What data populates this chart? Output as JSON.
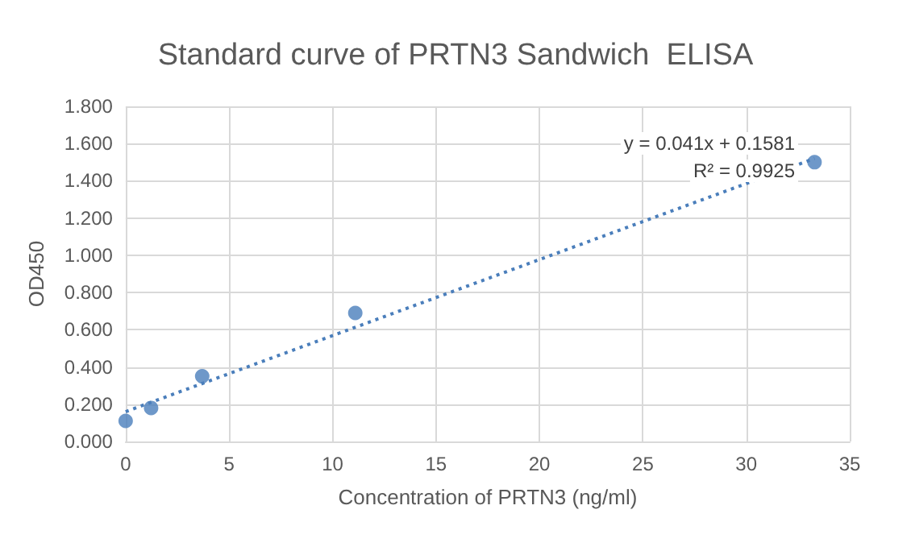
{
  "chart_data": {
    "type": "scatter",
    "title": "Standard curve of PRTN3 Sandwich  ELISA",
    "xlabel": "Concentration of PRTN3 (ng/ml)",
    "ylabel": "OD450",
    "series": [
      {
        "color": "#4a7ebb",
        "x": [
          0,
          1.23,
          3.7,
          11.1,
          33.3
        ],
        "values": [
          0.11,
          0.18,
          0.35,
          0.69,
          1.5
        ],
        "marker": "circle"
      },
      {
        "type": "line",
        "color": "#4a7ebb",
        "x": [
          0,
          33.3
        ],
        "values": [
          0.16,
          1.52
        ],
        "marker": "none",
        "line_style": "dotted"
      }
    ],
    "annotations": [
      "y = 0.041x + 0.1581",
      "R² = 0.9925"
    ],
    "xlim": [
      0,
      35
    ],
    "xticks": [
      0,
      5,
      10,
      15,
      20,
      25,
      30,
      35
    ],
    "ylim": [
      0,
      1.8
    ],
    "yticks": [
      {
        "value": 0,
        "label": "0.000"
      },
      {
        "value": 0.2,
        "label": "0.200"
      },
      {
        "value": 0.4,
        "label": "0.400"
      },
      {
        "value": 0.6,
        "label": "0.600"
      },
      {
        "value": 0.8,
        "label": "0.800"
      },
      {
        "value": 1,
        "label": "1.000"
      },
      {
        "value": 1.2,
        "label": "1.200"
      },
      {
        "value": 1.4,
        "label": "1.400"
      },
      {
        "value": 1.6,
        "label": "1.600"
      },
      {
        "value": 1.8,
        "label": "1.800"
      }
    ],
    "grid": true
  }
}
